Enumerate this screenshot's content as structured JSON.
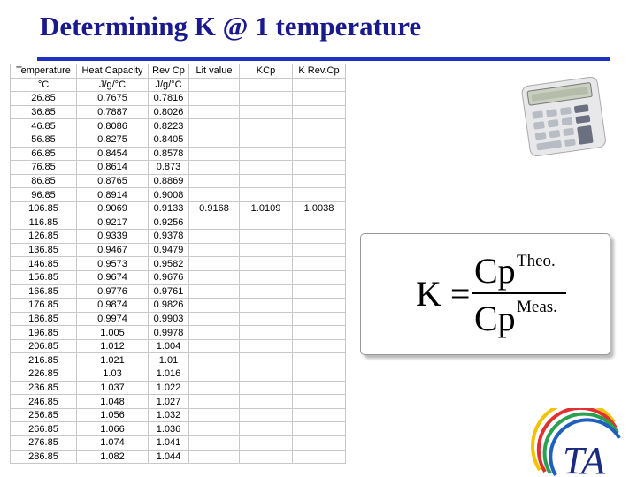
{
  "title": "Determining K @ 1 temperature",
  "table": {
    "columns": [
      "Temperature",
      "Heat Capacity",
      "Rev Cp",
      "Lit value",
      "KCp",
      "K Rev.Cp"
    ],
    "units": [
      "°C",
      "J/g/°C",
      "J/g/°C"
    ],
    "rows": [
      [
        "26.85",
        "0.7675",
        "0.7816"
      ],
      [
        "36.85",
        "0.7887",
        "0.8026"
      ],
      [
        "46.85",
        "0.8086",
        "0.8223"
      ],
      [
        "56.85",
        "0.8275",
        "0.8405"
      ],
      [
        "66.85",
        "0.8454",
        "0.8578"
      ],
      [
        "76.85",
        "0.8614",
        "0.873"
      ],
      [
        "86.85",
        "0.8765",
        "0.8869"
      ],
      [
        "96.85",
        "0.8914",
        "0.9008"
      ],
      [
        "106.85",
        "0.9069",
        "0.9133",
        "0.9168",
        "1.0109",
        "1.0038"
      ],
      [
        "116.85",
        "0.9217",
        "0.9256"
      ],
      [
        "126.85",
        "0.9339",
        "0.9378"
      ],
      [
        "136.85",
        "0.9467",
        "0.9479"
      ],
      [
        "146.85",
        "0.9573",
        "0.9582"
      ],
      [
        "156.85",
        "0.9674",
        "0.9676"
      ],
      [
        "166.85",
        "0.9776",
        "0.9761"
      ],
      [
        "176.85",
        "0.9874",
        "0.9826"
      ],
      [
        "186.85",
        "0.9974",
        "0.9903"
      ],
      [
        "196.85",
        "1.005",
        "0.9978"
      ],
      [
        "206.85",
        "1.012",
        "1.004"
      ],
      [
        "216.85",
        "1.021",
        "1.01"
      ],
      [
        "226.85",
        "1.03",
        "1.016"
      ],
      [
        "236.85",
        "1.037",
        "1.022"
      ],
      [
        "246.85",
        "1.048",
        "1.027"
      ],
      [
        "256.85",
        "1.056",
        "1.032"
      ],
      [
        "266.85",
        "1.066",
        "1.036"
      ],
      [
        "276.85",
        "1.074",
        "1.041"
      ],
      [
        "286.85",
        "1.082",
        "1.044"
      ]
    ]
  },
  "formula": {
    "lhs": "K =",
    "numerator": {
      "base": "Cp",
      "sup": "Theo."
    },
    "denominator": {
      "base": "Cp",
      "sup": "Meas."
    }
  },
  "logo": "TA"
}
